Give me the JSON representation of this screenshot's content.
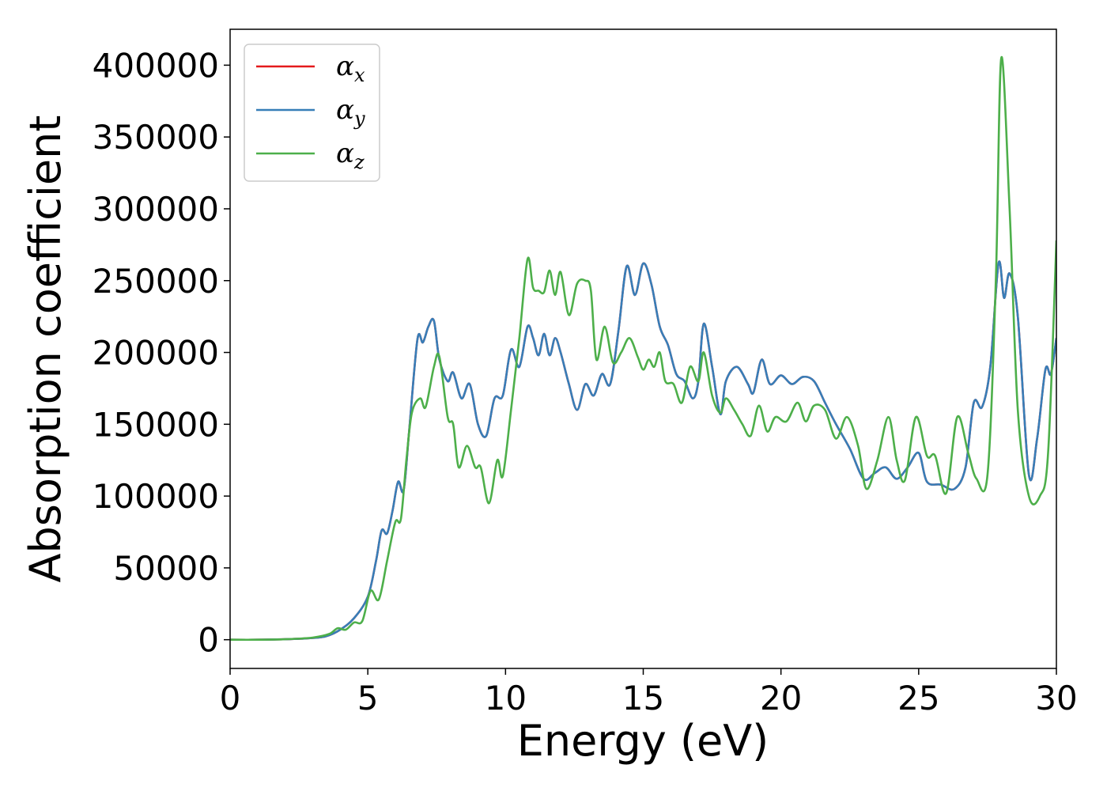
{
  "chart_data": {
    "type": "line",
    "title": "",
    "xlabel": "Energy (eV)",
    "ylabel": "Absorption coefficient",
    "xlim": [
      0,
      30
    ],
    "ylim": [
      -20000,
      425000
    ],
    "x_ticks": [
      "0",
      "5",
      "10",
      "15",
      "20",
      "25",
      "30"
    ],
    "y_ticks": [
      "0",
      "50000",
      "100000",
      "150000",
      "200000",
      "250000",
      "300000",
      "350000",
      "400000"
    ],
    "grid": false,
    "legend_position": "top-left",
    "series": [
      {
        "name": "αx",
        "sub": "x",
        "color": "#e41a1c",
        "points": [
          [
            0,
            0
          ],
          [
            1,
            0
          ],
          [
            2,
            300
          ],
          [
            3,
            1200
          ],
          [
            3.5,
            2500
          ],
          [
            4,
            7000
          ],
          [
            4.5,
            15000
          ],
          [
            5,
            30000
          ],
          [
            5.3,
            55000
          ],
          [
            5.5,
            76000
          ],
          [
            5.7,
            74000
          ],
          [
            5.9,
            90000
          ],
          [
            6.1,
            110000
          ],
          [
            6.3,
            104000
          ],
          [
            6.5,
            145000
          ],
          [
            6.8,
            209000
          ],
          [
            7.0,
            207000
          ],
          [
            7.2,
            218000
          ],
          [
            7.4,
            222000
          ],
          [
            7.6,
            195000
          ],
          [
            7.9,
            180000
          ],
          [
            8.1,
            186000
          ],
          [
            8.4,
            168000
          ],
          [
            8.7,
            178000
          ],
          [
            9.0,
            150000
          ],
          [
            9.3,
            142000
          ],
          [
            9.6,
            168000
          ],
          [
            9.9,
            170000
          ],
          [
            10.2,
            202000
          ],
          [
            10.5,
            190000
          ],
          [
            10.8,
            218000
          ],
          [
            11.0,
            210000
          ],
          [
            11.2,
            198000
          ],
          [
            11.4,
            213000
          ],
          [
            11.6,
            198000
          ],
          [
            11.8,
            210000
          ],
          [
            12.0,
            200000
          ],
          [
            12.3,
            178000
          ],
          [
            12.6,
            160000
          ],
          [
            12.9,
            178000
          ],
          [
            13.2,
            170000
          ],
          [
            13.5,
            185000
          ],
          [
            13.8,
            178000
          ],
          [
            14.1,
            215000
          ],
          [
            14.4,
            260000
          ],
          [
            14.7,
            240000
          ],
          [
            15.0,
            262000
          ],
          [
            15.3,
            247000
          ],
          [
            15.6,
            218000
          ],
          [
            15.9,
            205000
          ],
          [
            16.2,
            185000
          ],
          [
            16.5,
            180000
          ],
          [
            16.8,
            168000
          ],
          [
            17.0,
            180000
          ],
          [
            17.2,
            220000
          ],
          [
            17.5,
            190000
          ],
          [
            17.8,
            157000
          ],
          [
            18.0,
            180000
          ],
          [
            18.4,
            190000
          ],
          [
            18.8,
            178000
          ],
          [
            19.0,
            172000
          ],
          [
            19.3,
            195000
          ],
          [
            19.6,
            178000
          ],
          [
            20.0,
            184000
          ],
          [
            20.4,
            178000
          ],
          [
            20.8,
            183000
          ],
          [
            21.2,
            180000
          ],
          [
            21.6,
            165000
          ],
          [
            22.0,
            150000
          ],
          [
            22.5,
            133000
          ],
          [
            23.0,
            112000
          ],
          [
            23.4,
            116000
          ],
          [
            23.8,
            120000
          ],
          [
            24.2,
            112000
          ],
          [
            24.6,
            120000
          ],
          [
            25.0,
            130000
          ],
          [
            25.3,
            110000
          ],
          [
            25.8,
            108000
          ],
          [
            26.3,
            105000
          ],
          [
            26.7,
            120000
          ],
          [
            27.0,
            165000
          ],
          [
            27.3,
            162000
          ],
          [
            27.6,
            190000
          ],
          [
            27.9,
            262000
          ],
          [
            28.1,
            238000
          ],
          [
            28.3,
            255000
          ],
          [
            28.6,
            225000
          ],
          [
            29.0,
            115000
          ],
          [
            29.3,
            140000
          ],
          [
            29.6,
            188000
          ],
          [
            29.8,
            185000
          ],
          [
            30.0,
            210000
          ]
        ]
      },
      {
        "name": "αy",
        "sub": "y",
        "color": "#377eb8",
        "points": [
          [
            0,
            0
          ],
          [
            1,
            0
          ],
          [
            2,
            300
          ],
          [
            3,
            1200
          ],
          [
            3.5,
            2500
          ],
          [
            4,
            7000
          ],
          [
            4.5,
            15000
          ],
          [
            5,
            30000
          ],
          [
            5.3,
            55000
          ],
          [
            5.5,
            76000
          ],
          [
            5.7,
            74000
          ],
          [
            5.9,
            90000
          ],
          [
            6.1,
            110000
          ],
          [
            6.3,
            104000
          ],
          [
            6.5,
            145000
          ],
          [
            6.8,
            209000
          ],
          [
            7.0,
            207000
          ],
          [
            7.2,
            218000
          ],
          [
            7.4,
            222000
          ],
          [
            7.6,
            195000
          ],
          [
            7.9,
            180000
          ],
          [
            8.1,
            186000
          ],
          [
            8.4,
            168000
          ],
          [
            8.7,
            178000
          ],
          [
            9.0,
            150000
          ],
          [
            9.3,
            142000
          ],
          [
            9.6,
            168000
          ],
          [
            9.9,
            170000
          ],
          [
            10.2,
            202000
          ],
          [
            10.5,
            190000
          ],
          [
            10.8,
            218000
          ],
          [
            11.0,
            210000
          ],
          [
            11.2,
            198000
          ],
          [
            11.4,
            213000
          ],
          [
            11.6,
            198000
          ],
          [
            11.8,
            210000
          ],
          [
            12.0,
            200000
          ],
          [
            12.3,
            178000
          ],
          [
            12.6,
            160000
          ],
          [
            12.9,
            178000
          ],
          [
            13.2,
            170000
          ],
          [
            13.5,
            185000
          ],
          [
            13.8,
            178000
          ],
          [
            14.1,
            215000
          ],
          [
            14.4,
            260000
          ],
          [
            14.7,
            240000
          ],
          [
            15.0,
            262000
          ],
          [
            15.3,
            247000
          ],
          [
            15.6,
            218000
          ],
          [
            15.9,
            205000
          ],
          [
            16.2,
            185000
          ],
          [
            16.5,
            180000
          ],
          [
            16.8,
            168000
          ],
          [
            17.0,
            180000
          ],
          [
            17.2,
            220000
          ],
          [
            17.5,
            190000
          ],
          [
            17.8,
            157000
          ],
          [
            18.0,
            180000
          ],
          [
            18.4,
            190000
          ],
          [
            18.8,
            178000
          ],
          [
            19.0,
            172000
          ],
          [
            19.3,
            195000
          ],
          [
            19.6,
            178000
          ],
          [
            20.0,
            184000
          ],
          [
            20.4,
            178000
          ],
          [
            20.8,
            183000
          ],
          [
            21.2,
            180000
          ],
          [
            21.6,
            165000
          ],
          [
            22.0,
            150000
          ],
          [
            22.5,
            133000
          ],
          [
            23.0,
            112000
          ],
          [
            23.4,
            116000
          ],
          [
            23.8,
            120000
          ],
          [
            24.2,
            112000
          ],
          [
            24.6,
            120000
          ],
          [
            25.0,
            130000
          ],
          [
            25.3,
            110000
          ],
          [
            25.8,
            108000
          ],
          [
            26.3,
            105000
          ],
          [
            26.7,
            120000
          ],
          [
            27.0,
            165000
          ],
          [
            27.3,
            162000
          ],
          [
            27.6,
            190000
          ],
          [
            27.9,
            262000
          ],
          [
            28.1,
            238000
          ],
          [
            28.3,
            255000
          ],
          [
            28.6,
            225000
          ],
          [
            29.0,
            115000
          ],
          [
            29.3,
            140000
          ],
          [
            29.6,
            188000
          ],
          [
            29.8,
            185000
          ],
          [
            30.0,
            210000
          ]
        ]
      },
      {
        "name": "αz",
        "sub": "z",
        "color": "#4daf4a",
        "points": [
          [
            0,
            0
          ],
          [
            1,
            0
          ],
          [
            2,
            300
          ],
          [
            3,
            1500
          ],
          [
            3.6,
            4000
          ],
          [
            3.9,
            8000
          ],
          [
            4.2,
            7000
          ],
          [
            4.5,
            12000
          ],
          [
            4.8,
            13000
          ],
          [
            5.1,
            34000
          ],
          [
            5.4,
            28000
          ],
          [
            5.7,
            55000
          ],
          [
            6.0,
            82000
          ],
          [
            6.2,
            84000
          ],
          [
            6.4,
            125000
          ],
          [
            6.6,
            158000
          ],
          [
            6.9,
            168000
          ],
          [
            7.1,
            162000
          ],
          [
            7.4,
            190000
          ],
          [
            7.6,
            197000
          ],
          [
            7.9,
            155000
          ],
          [
            8.1,
            150000
          ],
          [
            8.3,
            120000
          ],
          [
            8.6,
            135000
          ],
          [
            8.9,
            120000
          ],
          [
            9.1,
            120000
          ],
          [
            9.4,
            95000
          ],
          [
            9.7,
            125000
          ],
          [
            9.9,
            114000
          ],
          [
            10.2,
            160000
          ],
          [
            10.5,
            210000
          ],
          [
            10.8,
            265000
          ],
          [
            11.0,
            245000
          ],
          [
            11.2,
            243000
          ],
          [
            11.4,
            242000
          ],
          [
            11.6,
            257000
          ],
          [
            11.8,
            240000
          ],
          [
            12.0,
            256000
          ],
          [
            12.3,
            226000
          ],
          [
            12.6,
            248000
          ],
          [
            12.9,
            250000
          ],
          [
            13.1,
            243000
          ],
          [
            13.3,
            195000
          ],
          [
            13.6,
            218000
          ],
          [
            13.9,
            193000
          ],
          [
            14.2,
            200000
          ],
          [
            14.5,
            210000
          ],
          [
            14.8,
            197000
          ],
          [
            15.0,
            188000
          ],
          [
            15.2,
            195000
          ],
          [
            15.4,
            190000
          ],
          [
            15.6,
            200000
          ],
          [
            15.8,
            180000
          ],
          [
            16.1,
            178000
          ],
          [
            16.4,
            165000
          ],
          [
            16.7,
            190000
          ],
          [
            17.0,
            180000
          ],
          [
            17.2,
            200000
          ],
          [
            17.5,
            170000
          ],
          [
            17.8,
            158000
          ],
          [
            18.0,
            168000
          ],
          [
            18.3,
            160000
          ],
          [
            18.6,
            150000
          ],
          [
            18.9,
            142000
          ],
          [
            19.2,
            163000
          ],
          [
            19.5,
            145000
          ],
          [
            19.8,
            155000
          ],
          [
            20.2,
            152000
          ],
          [
            20.6,
            165000
          ],
          [
            20.9,
            152000
          ],
          [
            21.2,
            163000
          ],
          [
            21.6,
            160000
          ],
          [
            22.0,
            140000
          ],
          [
            22.4,
            155000
          ],
          [
            22.8,
            135000
          ],
          [
            23.1,
            105000
          ],
          [
            23.5,
            125000
          ],
          [
            23.9,
            155000
          ],
          [
            24.2,
            125000
          ],
          [
            24.5,
            111000
          ],
          [
            24.9,
            155000
          ],
          [
            25.3,
            128000
          ],
          [
            25.6,
            128000
          ],
          [
            26.0,
            102000
          ],
          [
            26.4,
            155000
          ],
          [
            26.8,
            130000
          ],
          [
            27.1,
            112000
          ],
          [
            27.5,
            115000
          ],
          [
            27.8,
            250000
          ],
          [
            28.0,
            405000
          ],
          [
            28.3,
            300000
          ],
          [
            28.6,
            160000
          ],
          [
            29.0,
            100000
          ],
          [
            29.4,
            100000
          ],
          [
            29.7,
            130000
          ],
          [
            30.0,
            278000
          ]
        ]
      }
    ]
  }
}
